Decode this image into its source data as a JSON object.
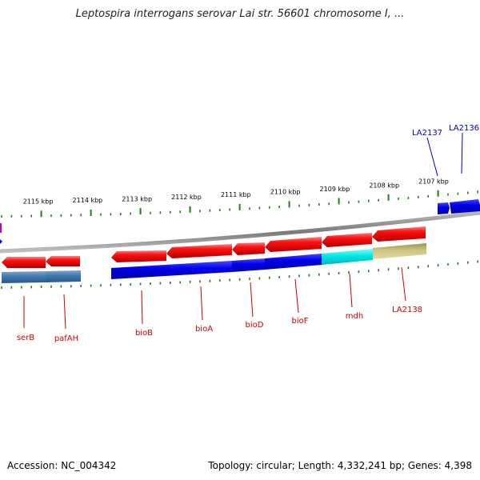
{
  "title": "Leptospira interrogans serovar Lai str. 56601 chromosome I, ...",
  "footer": {
    "accession": "Accession: NC_004342",
    "summary": "Topology: circular; Length: 4,332,241 bp; Genes: 4,398"
  },
  "colors": {
    "forward_gene": "#e8000a",
    "reverse_gene": "#0000e0",
    "cds_steelblue": "#3f78b0",
    "cds_cyan": "#00e5e5",
    "cds_khaki": "#c8c07a",
    "tick": "#1f7f1f",
    "label_red": "#cc0000",
    "label_blue": "#0000cc",
    "backbone": "#888888"
  },
  "scale_labels": [
    "2107 kbp",
    "2108 kbp",
    "2109 kbp",
    "2110 kbp",
    "2111 kbp",
    "2112 kbp",
    "2113 kbp",
    "2114 kbp",
    "2115 kbp"
  ],
  "upper_gene_labels": [
    "LA2137",
    "LA2136"
  ],
  "lower_gene_labels": [
    "serB",
    "pafAH",
    "bioB",
    "bioA",
    "bioD",
    "bioF",
    "mdh",
    "LA2138"
  ]
}
